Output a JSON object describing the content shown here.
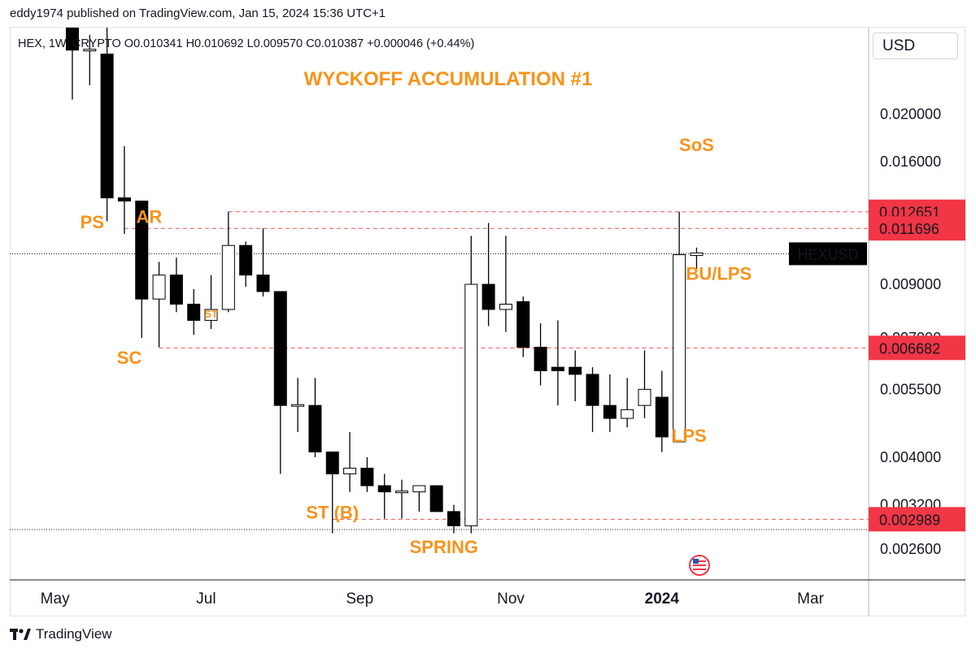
{
  "header": {
    "publisher": "eddy1974 published on TradingView.com, Jan 15, 2024 15:36 UTC+1",
    "ohlc": "HEX, 1W, CRYPTO  O0.010341  H0.010692  L0.009570  C0.010387  +0.000046 (+0.44%)",
    "currency": "USD"
  },
  "footer": {
    "brand": "TradingView"
  },
  "colors": {
    "up_body": "#ffffff",
    "down_body": "#000000",
    "wick": "#000000",
    "annotation": "#f7931a",
    "level_line": "#ef5350",
    "level_badge": "#f23645",
    "ticker_badge": "#000000"
  },
  "chart_data": {
    "type": "candlestick",
    "title": "WYCKOFF ACCUMULATION #1",
    "symbol": "HEXUSD",
    "interval": "1W",
    "y_scale": "log",
    "ylim": [
      0.00225,
      0.03
    ],
    "xlim": [
      "2023-04-17",
      "2024-03-11"
    ],
    "y_ticks": [
      "0.020000",
      "0.016000",
      "0.009000",
      "0.007000",
      "0.005500",
      "0.004000",
      "0.003200",
      "0.002600"
    ],
    "x_ticks": [
      {
        "label": "May",
        "date": "2023-05-01",
        "bold": false
      },
      {
        "label": "Jul",
        "date": "2023-07-01",
        "bold": false
      },
      {
        "label": "Sep",
        "date": "2023-09-01",
        "bold": false
      },
      {
        "label": "Nov",
        "date": "2023-11-01",
        "bold": false
      },
      {
        "label": "2024",
        "date": "2024-01-01",
        "bold": true
      },
      {
        "label": "Mar",
        "date": "2024-03-01",
        "bold": false
      }
    ],
    "candles": [
      {
        "date": "2023-05-08",
        "o": 0.0305,
        "h": 0.039,
        "l": 0.0214,
        "c": 0.027
      },
      {
        "date": "2023-05-15",
        "o": 0.027,
        "h": 0.029,
        "l": 0.0229,
        "c": 0.027
      },
      {
        "date": "2023-05-22",
        "o": 0.0265,
        "h": 0.034,
        "l": 0.0121,
        "c": 0.0135
      },
      {
        "date": "2023-05-29",
        "o": 0.0135,
        "h": 0.0172,
        "l": 0.0114,
        "c": 0.0133
      },
      {
        "date": "2023-06-05",
        "o": 0.0133,
        "h": 0.0133,
        "l": 0.007,
        "c": 0.0084
      },
      {
        "date": "2023-06-12",
        "o": 0.0084,
        "h": 0.01,
        "l": 0.0067,
        "c": 0.0094
      },
      {
        "date": "2023-06-19",
        "o": 0.0094,
        "h": 0.0102,
        "l": 0.0079,
        "c": 0.0082
      },
      {
        "date": "2023-06-26",
        "o": 0.0082,
        "h": 0.0088,
        "l": 0.0071,
        "c": 0.0076
      },
      {
        "date": "2023-07-03",
        "o": 0.0076,
        "h": 0.0094,
        "l": 0.0073,
        "c": 0.008
      },
      {
        "date": "2023-07-10",
        "o": 0.008,
        "h": 0.01265,
        "l": 0.0079,
        "c": 0.0108
      },
      {
        "date": "2023-07-17",
        "o": 0.0108,
        "h": 0.011,
        "l": 0.0089,
        "c": 0.0094
      },
      {
        "date": "2023-07-24",
        "o": 0.0094,
        "h": 0.0117,
        "l": 0.0085,
        "c": 0.0087
      },
      {
        "date": "2023-07-31",
        "o": 0.0087,
        "h": 0.0087,
        "l": 0.0037,
        "c": 0.0051
      },
      {
        "date": "2023-08-07",
        "o": 0.0051,
        "h": 0.0058,
        "l": 0.0045,
        "c": 0.0051
      },
      {
        "date": "2023-08-14",
        "o": 0.0051,
        "h": 0.0058,
        "l": 0.004,
        "c": 0.0041
      },
      {
        "date": "2023-08-21",
        "o": 0.0041,
        "h": 0.0041,
        "l": 0.0028,
        "c": 0.0037
      },
      {
        "date": "2023-08-28",
        "o": 0.0037,
        "h": 0.0045,
        "l": 0.0034,
        "c": 0.0038
      },
      {
        "date": "2023-09-04",
        "o": 0.0038,
        "h": 0.004,
        "l": 0.0034,
        "c": 0.0035
      },
      {
        "date": "2023-09-11",
        "o": 0.0035,
        "h": 0.0037,
        "l": 0.003,
        "c": 0.0034
      },
      {
        "date": "2023-09-18",
        "o": 0.0034,
        "h": 0.0036,
        "l": 0.003,
        "c": 0.0034
      },
      {
        "date": "2023-09-25",
        "o": 0.0034,
        "h": 0.0035,
        "l": 0.0031,
        "c": 0.0035
      },
      {
        "date": "2023-10-02",
        "o": 0.0035,
        "h": 0.0035,
        "l": 0.0031,
        "c": 0.0031
      },
      {
        "date": "2023-10-09",
        "o": 0.0031,
        "h": 0.0032,
        "l": 0.0028,
        "c": 0.0029
      },
      {
        "date": "2023-10-16",
        "o": 0.0029,
        "h": 0.0113,
        "l": 0.0028,
        "c": 0.009
      },
      {
        "date": "2023-10-23",
        "o": 0.009,
        "h": 0.012,
        "l": 0.0074,
        "c": 0.008
      },
      {
        "date": "2023-10-30",
        "o": 0.008,
        "h": 0.0113,
        "l": 0.0072,
        "c": 0.0082
      },
      {
        "date": "2023-11-06",
        "o": 0.0083,
        "h": 0.0085,
        "l": 0.0064,
        "c": 0.0067
      },
      {
        "date": "2023-11-13",
        "o": 0.0067,
        "h": 0.0075,
        "l": 0.0056,
        "c": 0.006
      },
      {
        "date": "2023-11-20",
        "o": 0.0061,
        "h": 0.0076,
        "l": 0.0051,
        "c": 0.006
      },
      {
        "date": "2023-11-27",
        "o": 0.0061,
        "h": 0.0066,
        "l": 0.0052,
        "c": 0.0059
      },
      {
        "date": "2023-12-04",
        "o": 0.0059,
        "h": 0.0061,
        "l": 0.0045,
        "c": 0.0051
      },
      {
        "date": "2023-12-11",
        "o": 0.0051,
        "h": 0.0059,
        "l": 0.0045,
        "c": 0.0048
      },
      {
        "date": "2023-12-18",
        "o": 0.0048,
        "h": 0.0058,
        "l": 0.0046,
        "c": 0.005
      },
      {
        "date": "2023-12-25",
        "o": 0.0051,
        "h": 0.0066,
        "l": 0.0048,
        "c": 0.0055
      },
      {
        "date": "2024-01-01",
        "o": 0.0053,
        "h": 0.006,
        "l": 0.0041,
        "c": 0.0044
      },
      {
        "date": "2024-01-08",
        "o": 0.0043,
        "h": 0.01265,
        "l": 0.0043,
        "c": 0.010341
      },
      {
        "date": "2024-01-15",
        "o": 0.010341,
        "h": 0.010692,
        "l": 0.00957,
        "c": 0.010387
      }
    ],
    "levels": [
      {
        "value": 0.01265,
        "label": "0.012651",
        "from": "2023-07-10"
      },
      {
        "value": 0.0117,
        "label": "0.011696",
        "from": "2023-05-29"
      },
      {
        "value": 0.00668,
        "label": "0.006682",
        "from": "2023-06-12"
      },
      {
        "value": 0.00299,
        "label": "0.002989",
        "from": "2023-08-21"
      }
    ],
    "current_price": {
      "value": 0.010387,
      "label": "HEXUSD"
    },
    "swing_low": 0.00285,
    "annotations": [
      {
        "text": "PS",
        "date": "2023-05-16",
        "price": 0.0117,
        "size": 22
      },
      {
        "text": "AR",
        "date": "2023-06-08",
        "price": 0.012,
        "size": 22
      },
      {
        "text": "SC",
        "date": "2023-05-31",
        "price": 0.0062,
        "size": 22
      },
      {
        "text": "ST",
        "date": "2023-07-03",
        "price": 0.0077,
        "size": 13
      },
      {
        "text": "ST (B)",
        "date": "2023-08-21",
        "price": 0.003,
        "size": 22
      },
      {
        "text": "SPRING",
        "date": "2023-10-05",
        "price": 0.00255,
        "size": 22
      },
      {
        "text": "SoS",
        "date": "2024-01-15",
        "price": 0.0168,
        "size": 22
      },
      {
        "text": "BU/LPS",
        "date": "2024-01-24",
        "price": 0.0092,
        "size": 22
      },
      {
        "text": "LPS",
        "date": "2024-01-12",
        "price": 0.0043,
        "size": 22
      }
    ]
  }
}
